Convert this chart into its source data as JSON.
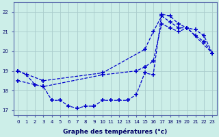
{
  "xlabel": "Graphe des températures (°c)",
  "bg_color": "#cceee8",
  "grid_color": "#aacccc",
  "line_color": "#0000cc",
  "yticks": [
    17,
    18,
    19,
    20,
    21,
    22
  ],
  "xticks": [
    0,
    1,
    2,
    3,
    4,
    5,
    6,
    7,
    8,
    9,
    10,
    11,
    12,
    13,
    14,
    15,
    16,
    17,
    18,
    19,
    20,
    21,
    22,
    23
  ],
  "xlim": [
    -0.5,
    23.5
  ],
  "ylim": [
    16.75,
    22.5
  ],
  "s1_x": [
    0,
    1,
    2,
    3,
    4,
    5,
    6,
    7,
    8,
    9,
    10,
    11,
    12,
    13,
    14,
    15,
    16,
    17,
    18,
    19,
    20,
    21,
    22,
    23
  ],
  "s1_y": [
    19.0,
    18.8,
    18.3,
    18.2,
    17.5,
    17.5,
    17.2,
    17.1,
    17.2,
    17.2,
    17.5,
    17.5,
    17.5,
    17.5,
    17.8,
    18.9,
    18.8,
    21.9,
    21.8,
    21.4,
    21.2,
    20.8,
    20.5,
    19.9
  ],
  "s2_x": [
    0,
    3,
    10,
    15,
    16,
    17,
    18,
    19,
    20,
    21,
    22,
    23
  ],
  "s2_y": [
    19.0,
    18.5,
    18.9,
    20.1,
    21.0,
    21.8,
    21.5,
    21.2,
    21.2,
    21.1,
    20.8,
    19.9
  ],
  "s3_x": [
    0,
    3,
    10,
    14,
    15,
    16,
    17,
    18,
    19,
    20,
    23
  ],
  "s3_y": [
    18.5,
    18.2,
    18.8,
    19.0,
    19.2,
    19.5,
    21.4,
    21.2,
    21.0,
    21.2,
    19.9
  ]
}
